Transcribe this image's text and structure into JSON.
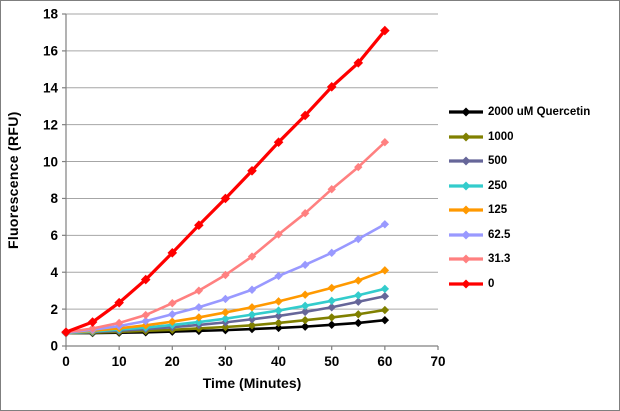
{
  "window": {
    "background": "#FFFFFF",
    "border_color": "#7F7F7F"
  },
  "chart_data": {
    "type": "line",
    "title": "",
    "xlabel": "Time (Minutes)",
    "ylabel": "Fluorescence (RFU)",
    "x": [
      0,
      5,
      10,
      15,
      20,
      25,
      30,
      35,
      40,
      45,
      50,
      55,
      60
    ],
    "xlim": [
      0,
      70
    ],
    "ylim": [
      0,
      18
    ],
    "x_ticks": [
      0,
      10,
      20,
      30,
      40,
      50,
      60,
      70
    ],
    "y_ticks": [
      0,
      2,
      4,
      6,
      8,
      10,
      12,
      14,
      16,
      18
    ],
    "grid": true,
    "legend_position": "right",
    "marker": "diamond",
    "colors": {
      "gridline": "#A6A6A6",
      "axis": "#808080",
      "tick": "#808080",
      "label_text": "#000000"
    },
    "series": [
      {
        "name": "2000 uM Quercetin",
        "color": "#000000",
        "values": [
          0.7,
          0.7,
          0.72,
          0.74,
          0.78,
          0.82,
          0.86,
          0.92,
          0.98,
          1.05,
          1.15,
          1.25,
          1.4
        ]
      },
      {
        "name": "1000",
        "color": "#808000",
        "values": [
          0.7,
          0.73,
          0.77,
          0.82,
          0.88,
          0.95,
          1.03,
          1.12,
          1.25,
          1.4,
          1.55,
          1.72,
          1.95
        ]
      },
      {
        "name": "500",
        "color": "#666699",
        "values": [
          0.7,
          0.76,
          0.83,
          0.92,
          1.02,
          1.14,
          1.28,
          1.45,
          1.63,
          1.85,
          2.1,
          2.4,
          2.7
        ]
      },
      {
        "name": "250",
        "color": "#33CCCC",
        "values": [
          0.7,
          0.79,
          0.89,
          1.0,
          1.14,
          1.3,
          1.48,
          1.7,
          1.92,
          2.18,
          2.45,
          2.75,
          3.1
        ]
      },
      {
        "name": "125",
        "color": "#FF9900",
        "values": [
          0.72,
          0.83,
          0.96,
          1.12,
          1.32,
          1.55,
          1.82,
          2.1,
          2.42,
          2.78,
          3.15,
          3.55,
          4.1
        ]
      },
      {
        "name": "62.5",
        "color": "#9999FF",
        "values": [
          0.72,
          0.88,
          1.08,
          1.35,
          1.72,
          2.1,
          2.55,
          3.05,
          3.8,
          4.4,
          5.05,
          5.8,
          6.6
        ]
      },
      {
        "name": "31.3",
        "color": "#FF8080",
        "values": [
          0.75,
          0.95,
          1.25,
          1.68,
          2.32,
          3.0,
          3.85,
          4.85,
          6.05,
          7.2,
          8.5,
          9.7,
          11.05
        ]
      },
      {
        "name": "0",
        "color": "#FF0000",
        "values": [
          0.75,
          1.3,
          2.35,
          3.6,
          5.05,
          6.55,
          8.0,
          9.5,
          11.05,
          12.5,
          14.05,
          15.35,
          17.1
        ]
      }
    ]
  }
}
